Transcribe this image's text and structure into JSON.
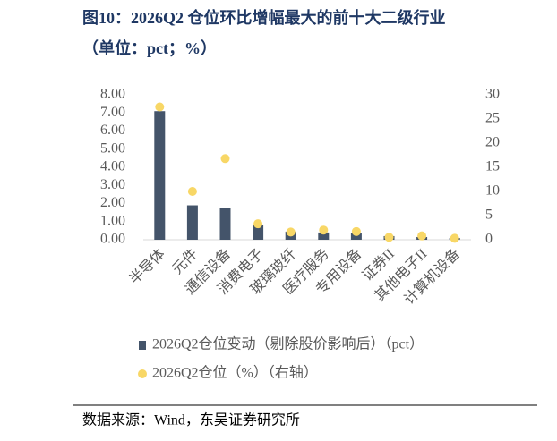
{
  "chart_data": {
    "type": "bar",
    "title": "图10：2026Q2 仓位环比增幅最大的前十大二级行业",
    "subtitle": "（单位：pct；%）",
    "source": "数据来源：Wind，东吴证券研究所",
    "categories": [
      "半导体",
      "元件",
      "通信设备",
      "消费电子",
      "玻璃玻纤",
      "医疗服务",
      "专用设备",
      "证券II",
      "其他电子II",
      "计算机设备"
    ],
    "series": [
      {
        "name": "2026Q2仓位变动（剔除股价影响后）（pct）",
        "type": "bar",
        "color": "#44546a",
        "axis": "y",
        "values": [
          7.1,
          1.9,
          1.75,
          0.8,
          0.45,
          0.4,
          0.35,
          0.2,
          0.15,
          0.1
        ]
      },
      {
        "name": "2026Q2仓位（%）（右轴）",
        "type": "scatter",
        "color": "#f8d766",
        "axis": "y2",
        "values": [
          27.5,
          10,
          16.8,
          3.3,
          1.6,
          2,
          1.7,
          0.5,
          0.8,
          0.3
        ]
      }
    ],
    "ylim": [
      0,
      8
    ],
    "yticks": [
      {
        "value": 0,
        "label": "0.00"
      },
      {
        "value": 1,
        "label": "1.00"
      },
      {
        "value": 2,
        "label": "2.00"
      },
      {
        "value": 3,
        "label": "3.00"
      },
      {
        "value": 4,
        "label": "4.00"
      },
      {
        "value": 5,
        "label": "5.00"
      },
      {
        "value": 6,
        "label": "6.00"
      },
      {
        "value": 7,
        "label": "7.00"
      },
      {
        "value": 8,
        "label": "8.00"
      }
    ],
    "y2lim": [
      0,
      30
    ],
    "y2ticks": [
      0,
      5,
      10,
      15,
      20,
      25,
      30
    ],
    "grid": false
  }
}
